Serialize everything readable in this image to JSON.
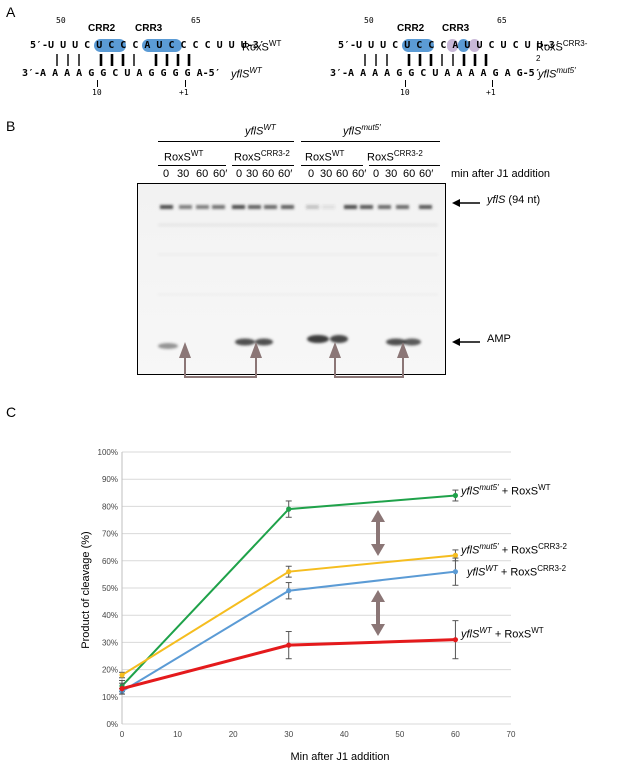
{
  "panelA": {
    "label": "A",
    "left": {
      "top_num_left": "50",
      "top_num_right": "65",
      "crr2": "CRR2",
      "crr3": "CRR3",
      "top_seq": "5′-U U U C U C C C A U C C C C U U U-3′",
      "top_name": "RoxS",
      "top_name_sup": "WT",
      "bottom_seq": "3′-A A A A G G C U A G G G G A-5′",
      "bottom_name": "yflS",
      "bottom_name_sup": "WT",
      "bottom_num_left": "10",
      "bottom_num_right": "+1"
    },
    "right": {
      "top_num_left": "50",
      "top_num_right": "65",
      "crr2": "CRR2",
      "crr3": "CRR3",
      "top_seq": "5′-U U U C U C C C A U U C U C U U-3′",
      "top_name": "RoxS",
      "top_name_sup": "CRR3-2",
      "bottom_seq": "3′-A A A A G G C U A A A A G A G-5′",
      "bottom_name": "yflS",
      "bottom_name_sup": "mut5′",
      "bottom_num_left": "10",
      "bottom_num_right": "+1"
    }
  },
  "panelB": {
    "label": "B",
    "group1": "yflS",
    "group1_sup": "WT",
    "group2": "yflS",
    "group2_sup": "mut5′",
    "sub1": "RoxS",
    "sub1_sup": "WT",
    "sub2": "RoxS",
    "sub2_sup": "CRR3-2",
    "sub3": "RoxS",
    "sub3_sup": "WT",
    "sub4": "RoxS",
    "sub4_sup": "CRR3-2",
    "times": [
      "0",
      "30",
      "60",
      "60′",
      "0",
      "30",
      "60",
      "60′",
      "0",
      "30",
      "60",
      "60′",
      "0",
      "30",
      "60",
      "60′"
    ],
    "time_caption": "min after J1 addition",
    "yfls_label": "yflS",
    "yfls_suffix": " (94 nt)",
    "amp_label": "AMP"
  },
  "panelC": {
    "label": "C",
    "chart_data": {
      "type": "line",
      "xlabel": "Min after J1 addition",
      "ylabel": "Product of cleavage (%)",
      "xlim": [
        0,
        70
      ],
      "ylim": [
        0,
        100
      ],
      "xticks": [
        "0",
        "10",
        "20",
        "30",
        "40",
        "50",
        "60",
        "70"
      ],
      "yticks": [
        "0%",
        "10%",
        "20%",
        "30%",
        "40%",
        "50%",
        "60%",
        "70%",
        "80%",
        "90%",
        "100%"
      ],
      "grid": true,
      "x": [
        0,
        30,
        60
      ],
      "series": [
        {
          "name": "yflS mut5′ + RoxS WT",
          "name_main": "yflS",
          "name_sup": "mut5′",
          "name_rest": " + RoxS",
          "name_rest_sup": "WT",
          "color": "#1fa24a",
          "values": [
            14,
            79,
            84
          ],
          "errors": [
            2,
            3,
            2
          ]
        },
        {
          "name": "yflS mut5′ + RoxS CRR3-2",
          "name_main": "yflS",
          "name_sup": "mut5′",
          "name_rest": " + RoxS",
          "name_rest_sup": "CRR3-2",
          "color": "#f5bd1f",
          "values": [
            18,
            56,
            62
          ],
          "errors": [
            1,
            2,
            2
          ]
        },
        {
          "name": "yflS WT + RoxS CRR3-2",
          "name_main": "yflS",
          "name_sup": "WT",
          "name_rest": " + RoxS",
          "name_rest_sup": "CRR3-2",
          "color": "#5b9bd5",
          "values": [
            12,
            49,
            56
          ],
          "errors": [
            1,
            3,
            5
          ]
        },
        {
          "name": "yflS WT + RoxS WT",
          "name_main": "yflS",
          "name_sup": "WT",
          "name_rest": " + RoxS",
          "name_rest_sup": "WT",
          "color": "#e41a1c",
          "values": [
            13,
            29,
            31
          ],
          "errors": [
            2,
            5,
            7
          ]
        }
      ]
    }
  }
}
